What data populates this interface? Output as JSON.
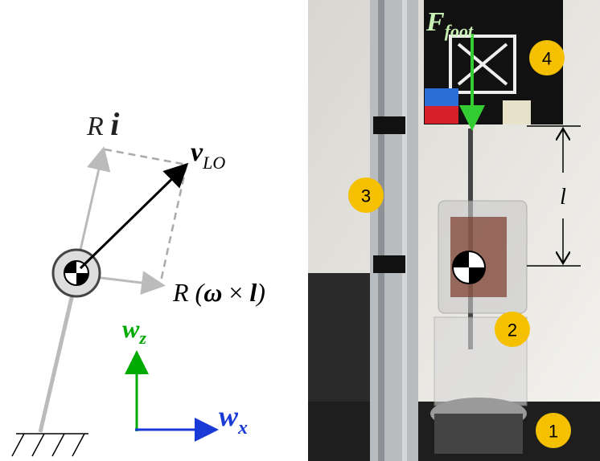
{
  "diagram": {
    "r_i": {
      "prefix": "R",
      "symbol": "i"
    },
    "v_lo": {
      "symbol": "v",
      "subscript": "LO"
    },
    "r_omega_l": {
      "parts": [
        "R (",
        "ω",
        " × ",
        "l",
        ")"
      ]
    },
    "w_z": {
      "symbol": "w",
      "subscript": "z"
    },
    "w_x": {
      "symbol": "w",
      "subscript": "x"
    }
  },
  "photo": {
    "force": {
      "symbol": "F",
      "subscript": "foot"
    },
    "length": "l",
    "markers": [
      "1",
      "2",
      "3",
      "4"
    ]
  }
}
